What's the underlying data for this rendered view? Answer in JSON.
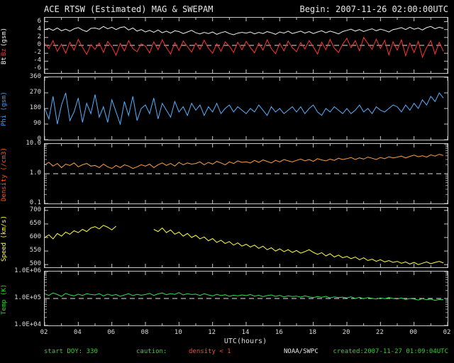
{
  "header": {
    "title": "ACE RTSW (Estimated) MAG & SWEPAM",
    "begin_label": "Begin: 2007-11-26 02:00:00UTC"
  },
  "footer": {
    "start_doy": "start DOY: 330",
    "caution": "caution:",
    "density_warning": "density < 1",
    "agency": "NOAA/SWPC",
    "created": "created:2007-11-27 01:09:04UTC"
  },
  "colors": {
    "background": "#000000",
    "frame": "#c8c8c8",
    "bt": "#f0f0f0",
    "bz": "#ff3333",
    "phi": "#55b0ff",
    "density": "#ffa040",
    "speed": "#ffff44",
    "temp": "#33dd55",
    "warning_red": "#ff4040",
    "annotation_green": "#2fd12f"
  },
  "xaxis": {
    "label": "UTC(hours)",
    "tick_labels": [
      "02",
      "04",
      "06",
      "08",
      "10",
      "12",
      "14",
      "16",
      "18",
      "20",
      "22",
      "00",
      "02"
    ],
    "tick_hours": [
      2,
      4,
      6,
      8,
      10,
      12,
      14,
      16,
      18,
      20,
      22,
      24,
      26
    ]
  },
  "chart_data": [
    {
      "type": "line",
      "title": "Bt Bz (gsm)",
      "ylabel_parts": [
        {
          "text": "Bt",
          "color": "#f0f0f0"
        },
        {
          "text": "Bz",
          "color": "#ff3333"
        },
        {
          "text": "(gsm)",
          "color": "#f0f0f0"
        }
      ],
      "yscale": "linear",
      "ylim": [
        -7,
        7
      ],
      "yticks": [
        {
          "value": 6,
          "label": "6"
        },
        {
          "value": 4,
          "label": "4"
        },
        {
          "value": 2,
          "label": "2"
        },
        {
          "value": 0,
          "label": "0"
        },
        {
          "value": -2,
          "label": "-2"
        },
        {
          "value": -4,
          "label": "-4"
        },
        {
          "value": -6,
          "label": "-6"
        }
      ],
      "dashed_y": 0,
      "xlim": [
        2,
        26
      ],
      "x_start": 2,
      "x_step": 0.25,
      "series": [
        {
          "name": "Bt",
          "color": "#f0f0f0",
          "values": [
            4.0,
            4.3,
            3.8,
            4.4,
            3.7,
            4.1,
            3.6,
            4.2,
            4.5,
            3.9,
            3.5,
            4.3,
            4.4,
            4.1,
            4.8,
            4.2,
            4.6,
            4.0,
            4.5,
            4.7,
            3.9,
            4.4,
            3.6,
            4.0,
            3.4,
            3.8,
            3.3,
            3.9,
            3.2,
            3.6,
            3.1,
            3.7,
            3.5,
            3.0,
            3.4,
            3.8,
            3.2,
            2.9,
            3.3,
            3.0,
            3.4,
            2.8,
            3.2,
            3.5,
            3.0,
            2.7,
            3.1,
            3.3,
            3.1,
            3.4,
            2.9,
            3.3,
            3.0,
            3.5,
            3.2,
            2.8,
            3.4,
            3.1,
            3.6,
            3.0,
            3.3,
            3.6,
            3.1,
            3.5,
            3.0,
            3.4,
            3.7,
            3.2,
            3.6,
            3.3,
            2.9,
            3.5,
            3.8,
            4.1,
            3.6,
            4.0,
            3.5,
            3.9,
            4.2,
            3.7,
            4.1,
            3.8,
            3.4,
            4.0,
            4.2,
            4.5,
            4.0,
            4.6,
            4.1,
            4.4,
            3.9,
            4.5,
            4.8,
            4.2,
            4.6,
            4.3
          ]
        },
        {
          "name": "Bz",
          "color": "#ff3333",
          "values": [
            0.5,
            -0.8,
            1.2,
            -1.5,
            0.3,
            -2.0,
            0.8,
            -1.2,
            1.5,
            -0.5,
            -2.3,
            0.2,
            -1.0,
            0.6,
            -1.8,
            1.0,
            -0.4,
            -2.5,
            0.5,
            -1.4,
            1.2,
            -0.8,
            -1.6,
            0.4,
            -0.2,
            -1.9,
            0.9,
            -1.1,
            1.4,
            -0.6,
            -2.2,
            0.7,
            -1.3,
            1.1,
            -0.3,
            -1.7,
            0.6,
            -1.0,
            1.3,
            -0.7,
            -2.0,
            0.4,
            -1.5,
            0.9,
            -0.2,
            -1.8,
            0.8,
            -1.1,
            1.0,
            -0.5,
            -1.9,
            0.6,
            -1.2,
            1.4,
            -0.8,
            -2.1,
            0.5,
            -1.4,
            1.1,
            -0.6,
            -1.6,
            0.7,
            -0.9,
            1.2,
            -0.4,
            -2.2,
            0.8,
            -1.1,
            1.5,
            -0.7,
            -1.8,
            0.3,
            1.8,
            -0.6,
            1.2,
            -1.4,
            2.0,
            0.5,
            -1.0,
            1.6,
            -0.8,
            1.3,
            -2.4,
            0.9,
            -1.2,
            1.4,
            -2.6,
            0.6,
            -1.8,
            1.0,
            -3.0,
            -0.5,
            1.2,
            -2.2,
            0.8,
            -1.5
          ]
        }
      ]
    },
    {
      "type": "line",
      "title": "Phi (gsm)",
      "ylabel_parts": [
        {
          "text": "Phi (gsm)",
          "color": "#3aa0ff"
        }
      ],
      "yscale": "linear",
      "ylim": [
        0,
        360
      ],
      "yticks": [
        {
          "value": 360,
          "label": "360"
        },
        {
          "value": 270,
          "label": "270"
        },
        {
          "value": 180,
          "label": "180"
        },
        {
          "value": 90,
          "label": "90"
        },
        {
          "value": 0,
          "label": "0"
        }
      ],
      "dashed_y": null,
      "xlim": [
        2,
        26
      ],
      "x_start": 2,
      "x_step": 0.25,
      "series": [
        {
          "name": "Phi",
          "color": "#55b0ff",
          "values": [
            180,
            120,
            250,
            90,
            200,
            270,
            110,
            160,
            240,
            100,
            210,
            150,
            260,
            130,
            190,
            100,
            230,
            160,
            90,
            220,
            140,
            250,
            110,
            180,
            200,
            150,
            240,
            120,
            210,
            170,
            130,
            220,
            160,
            190,
            140,
            210,
            170,
            200,
            140,
            190,
            160,
            210,
            150,
            180,
            200,
            160,
            190,
            170,
            150,
            180,
            160,
            200,
            170,
            140,
            190,
            160,
            180,
            150,
            170,
            190,
            160,
            190,
            150,
            180,
            200,
            160,
            140,
            180,
            160,
            190,
            170,
            150,
            180,
            150,
            170,
            200,
            160,
            180,
            150,
            190,
            170,
            160,
            180,
            200,
            190,
            160,
            200,
            170,
            210,
            180,
            230,
            200,
            250,
            220,
            270,
            240
          ]
        }
      ]
    },
    {
      "type": "line",
      "title": "Density (/cm3)",
      "ylabel_parts": [
        {
          "text": "Density (/cm3)",
          "color": "#ff5a00"
        }
      ],
      "yscale": "log",
      "ylim": [
        0.1,
        10
      ],
      "yticks": [
        {
          "value": 10,
          "label": "10.0"
        },
        {
          "value": 1,
          "label": "1.0"
        },
        {
          "value": 0.1,
          "label": "0.1"
        }
      ],
      "dashed_y": 1,
      "xlim": [
        2,
        26
      ],
      "x_start": 2,
      "x_step": 0.25,
      "series": [
        {
          "name": "Density",
          "color": "#ffa040",
          "values": [
            2.0,
            2.4,
            1.8,
            2.2,
            1.6,
            2.1,
            1.9,
            2.3,
            1.7,
            2.0,
            2.2,
            1.8,
            1.9,
            1.6,
            2.1,
            1.7,
            1.5,
            1.9,
            1.6,
            2.0,
            1.8,
            1.5,
            1.7,
            2.0,
            1.8,
            2.1,
            1.6,
            2.0,
            2.3,
            1.9,
            2.2,
            1.8,
            2.4,
            2.0,
            2.3,
            2.1,
            2.2,
            2.5,
            2.0,
            2.4,
            2.1,
            2.6,
            2.3,
            2.0,
            2.5,
            2.2,
            2.7,
            2.4,
            2.5,
            2.3,
            2.8,
            2.4,
            2.9,
            2.6,
            2.3,
            2.8,
            2.5,
            3.0,
            2.7,
            2.5,
            2.8,
            3.1,
            2.7,
            3.0,
            2.6,
            3.2,
            2.9,
            2.7,
            3.1,
            2.8,
            3.3,
            3.0,
            3.2,
            3.5,
            3.0,
            3.4,
            3.1,
            3.6,
            3.3,
            3.0,
            3.5,
            3.2,
            3.7,
            3.4,
            3.6,
            3.9,
            3.4,
            3.8,
            4.2,
            3.7,
            4.0,
            3.6,
            4.3,
            3.9,
            4.5,
            4.1
          ]
        }
      ]
    },
    {
      "type": "line",
      "title": "Speed (km/s)",
      "ylabel_parts": [
        {
          "text": "Speed (km/s)",
          "color": "#ffff33"
        }
      ],
      "yscale": "linear",
      "ylim": [
        490,
        710
      ],
      "yticks": [
        {
          "value": 700,
          "label": "700"
        },
        {
          "value": 650,
          "label": "650"
        },
        {
          "value": 600,
          "label": "600"
        },
        {
          "value": 550,
          "label": "550"
        },
        {
          "value": 500,
          "label": "500"
        }
      ],
      "dashed_y": null,
      "xlim": [
        2,
        26
      ],
      "x_start": 2,
      "x_step": 0.25,
      "series": [
        {
          "name": "Speed",
          "color": "#ffff44",
          "values": [
            600,
            610,
            595,
            615,
            605,
            620,
            612,
            625,
            618,
            630,
            622,
            635,
            640,
            632,
            645,
            638,
            628,
            642,
            null,
            null,
            null,
            null,
            null,
            null,
            null,
            null,
            630,
            622,
            635,
            618,
            628,
            612,
            620,
            605,
            615,
            600,
            608,
            595,
            602,
            588,
            596,
            582,
            590,
            578,
            585,
            572,
            580,
            568,
            575,
            565,
            572,
            560,
            568,
            555,
            562,
            550,
            558,
            548,
            555,
            545,
            552,
            542,
            548,
            555,
            545,
            538,
            544,
            532,
            540,
            528,
            535,
            525,
            530,
            522,
            528,
            518,
            525,
            515,
            520,
            512,
            518,
            510,
            515,
            508,
            512,
            505,
            510,
            502,
            508,
            500,
            505,
            510,
            503,
            508,
            512,
            506
          ]
        }
      ]
    },
    {
      "type": "line",
      "title": "Temp (K)",
      "ylabel_parts": [
        {
          "text": "Temp (K)",
          "color": "#2fd12f"
        }
      ],
      "yscale": "log",
      "ylim": [
        10000,
        1000000
      ],
      "yticks": [
        {
          "value": 1000000,
          "label": "1.0E+06"
        },
        {
          "value": 100000,
          "label": "1.0E+05"
        },
        {
          "value": 10000,
          "label": "1.0E+04"
        }
      ],
      "dashed_y": 100000,
      "xlim": [
        2,
        26
      ],
      "x_start": 2,
      "x_step": 0.25,
      "series": [
        {
          "name": "Temp",
          "color": "#33dd55",
          "values": [
            150000,
            130000,
            160000,
            140000,
            120000,
            155000,
            135000,
            125000,
            145000,
            130000,
            150000,
            140000,
            135000,
            150000,
            125000,
            145000,
            130000,
            140000,
            120000,
            135000,
            150000,
            128000,
            142000,
            132000,
            140000,
            155000,
            130000,
            148000,
            160000,
            138000,
            152000,
            142000,
            165000,
            135000,
            150000,
            140000,
            145000,
            130000,
            150000,
            135000,
            125000,
            142000,
            128000,
            138000,
            120000,
            132000,
            125000,
            135000,
            128000,
            140000,
            122000,
            132000,
            118000,
            128000,
            135000,
            120000,
            130000,
            115000,
            125000,
            118000,
            122000,
            112000,
            125000,
            115000,
            108000,
            118000,
            110000,
            120000,
            105000,
            115000,
            108000,
            112000,
            105000,
            115000,
            100000,
            110000,
            98000,
            108000,
            102000,
            95000,
            105000,
            98000,
            108000,
            100000,
            96000,
            105000,
            92000,
            100000,
            95000,
            88000,
            98000,
            90000,
            95000,
            85000,
            92000,
            90000
          ]
        }
      ]
    }
  ]
}
